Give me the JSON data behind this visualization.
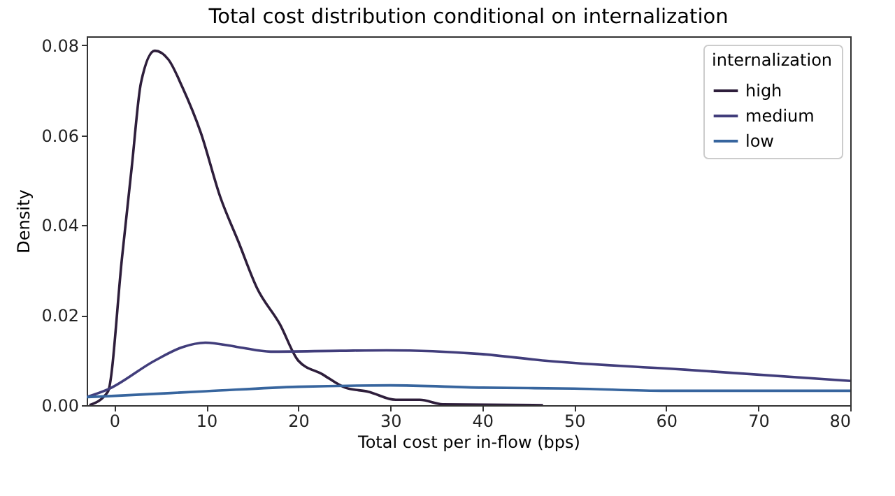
{
  "chart_data": {
    "type": "line",
    "title": "Total cost distribution conditional on internalization",
    "xlabel": "Total cost per in-flow (bps)",
    "ylabel": "Density",
    "legend_title": "internalization",
    "legend": "top right",
    "grid": false,
    "xlim": [
      -3,
      80
    ],
    "ylim": [
      0,
      0.082
    ],
    "xticks": [
      0,
      10,
      20,
      30,
      40,
      50,
      60,
      70,
      80
    ],
    "yticks": [
      {
        "value": 0,
        "label": "0.00"
      },
      {
        "value": 0.02,
        "label": "0.02"
      },
      {
        "value": 0.04,
        "label": "0.04"
      },
      {
        "value": 0.06,
        "label": "0.06"
      },
      {
        "value": 0.08,
        "label": "0.08"
      }
    ],
    "series": [
      {
        "name": "high",
        "color": "#2e1e3b",
        "x": [
          -2.7,
          -0.7,
          0.85,
          1.9,
          2.9,
          4.4,
          5.9,
          7.4,
          9.4,
          11.5,
          13.5,
          15.5,
          18,
          20,
          22.6,
          25.1,
          27.6,
          30.6,
          33.2,
          35.7,
          46.6
        ],
        "values": [
          0,
          0.003,
          0.033,
          0.053,
          0.0717,
          0.0788,
          0.0768,
          0.0707,
          0.0606,
          0.0464,
          0.0363,
          0.0261,
          0.018,
          0.0099,
          0.0069,
          0.0039,
          0.003,
          0.0012,
          0.0012,
          0.0002,
          0
        ]
      },
      {
        "name": "medium",
        "color": "#413d7b",
        "x": [
          -3,
          -0.7,
          4.4,
          7.4,
          9.9,
          13.5,
          17,
          24.6,
          29.6,
          39.7,
          46.8,
          62,
          80
        ],
        "values": [
          0.0018,
          0.0035,
          0.0099,
          0.0129,
          0.0139,
          0.0129,
          0.0119,
          0.0121,
          0.0122,
          0.0114,
          0.0099,
          0.0079,
          0.0054
        ]
      },
      {
        "name": "low",
        "color": "#37659e",
        "x": [
          -3,
          -0.7,
          10,
          20,
          30,
          40,
          50,
          60,
          80
        ],
        "values": [
          0.0018,
          0.002,
          0.0031,
          0.0041,
          0.0044,
          0.0039,
          0.0037,
          0.0032,
          0.0032
        ]
      }
    ]
  }
}
